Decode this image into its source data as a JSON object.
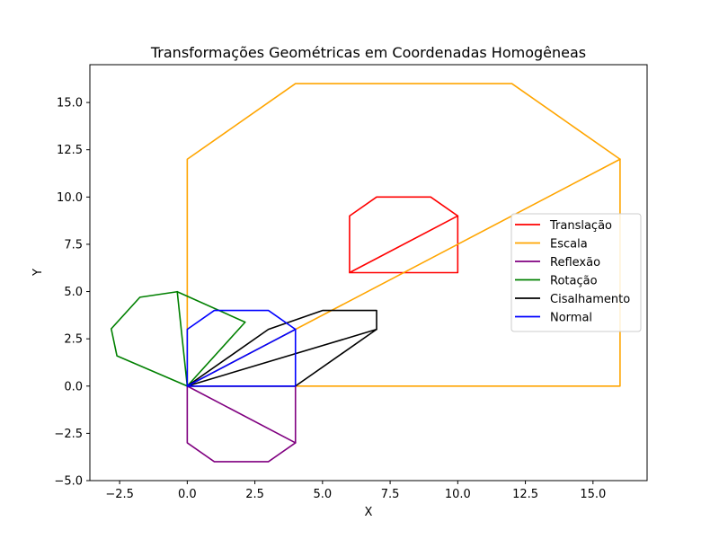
{
  "chart_data": {
    "type": "line",
    "title": "Transformações Geométricas em Coordenadas Homogêneas",
    "xlabel": "X",
    "ylabel": "Y",
    "xlim": [
      -3.6,
      17.0
    ],
    "ylim": [
      -5.0,
      17.0
    ],
    "xticks": [
      -2.5,
      0.0,
      2.5,
      5.0,
      7.5,
      10.0,
      12.5,
      15.0
    ],
    "xtick_labels": [
      "−2.5",
      "0.0",
      "2.5",
      "5.0",
      "7.5",
      "10.0",
      "12.5",
      "15.0"
    ],
    "yticks": [
      -5.0,
      -2.5,
      0.0,
      2.5,
      5.0,
      7.5,
      10.0,
      12.5,
      15.0
    ],
    "ytick_labels": [
      "−5.0",
      "−2.5",
      "0.0",
      "2.5",
      "5.0",
      "7.5",
      "10.0",
      "12.5",
      "15.0"
    ],
    "grid": false,
    "legend_position": "right",
    "series": [
      {
        "name": "Translação",
        "color": "#ff0000",
        "x": [
          6,
          10,
          10,
          9,
          7,
          6,
          6,
          10
        ],
        "y": [
          6,
          6,
          9,
          10,
          10,
          9,
          6,
          9
        ]
      },
      {
        "name": "Escala",
        "color": "#ffa500",
        "x": [
          0,
          16,
          16,
          12,
          4,
          0,
          0,
          16
        ],
        "y": [
          0,
          0,
          12,
          16,
          16,
          12,
          0,
          12
        ]
      },
      {
        "name": "Reflexão",
        "color": "#800080",
        "x": [
          0,
          4,
          4,
          3,
          1,
          0,
          0,
          4
        ],
        "y": [
          0,
          0,
          -3,
          -4,
          -4,
          -3,
          0,
          -3
        ]
      },
      {
        "name": "Rotação",
        "color": "#008000",
        "x": [
          0,
          2.14,
          -0.37,
          -1.75,
          -2.81,
          -2.6,
          0,
          -0.37
        ],
        "y": [
          0,
          3.38,
          4.99,
          4.7,
          3.03,
          1.6,
          0,
          4.99
        ]
      },
      {
        "name": "Cisalhamento",
        "color": "#000000",
        "x": [
          0,
          4,
          7,
          7,
          5,
          3,
          0,
          7
        ],
        "y": [
          0,
          0,
          3,
          4,
          4,
          3,
          0,
          3
        ]
      },
      {
        "name": "Normal",
        "color": "#0000ff",
        "x": [
          0,
          4,
          4,
          3,
          1,
          0,
          0,
          4
        ],
        "y": [
          0,
          0,
          3,
          4,
          4,
          3,
          0,
          3
        ]
      }
    ]
  }
}
